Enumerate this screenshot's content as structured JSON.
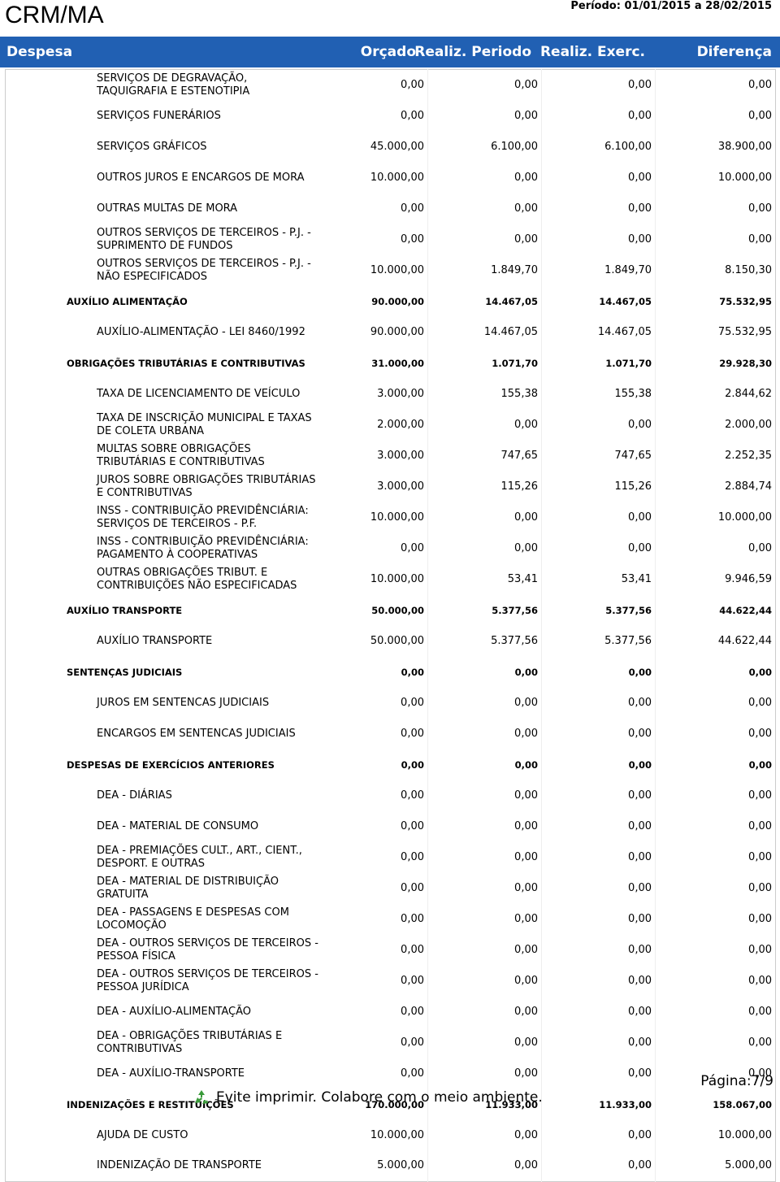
{
  "header": {
    "title": "CRM/MA",
    "period": "Período: 01/01/2015 a 28/02/2015"
  },
  "table": {
    "columns": [
      "Despesa",
      "Orçado",
      "Realiz. Periodo",
      "Realiz. Exerc.",
      "Diferença"
    ],
    "rows": [
      {
        "label": "SERVIÇOS DE DEGRAVAÇÃO, TAQUIGRAFIA E ESTENOTIPIA",
        "group": false,
        "values": [
          "0,00",
          "0,00",
          "0,00",
          "0,00"
        ]
      },
      {
        "label": "SERVIÇOS FUNERÁRIOS",
        "group": false,
        "values": [
          "0,00",
          "0,00",
          "0,00",
          "0,00"
        ]
      },
      {
        "label": "SERVIÇOS GRÁFICOS",
        "group": false,
        "values": [
          "45.000,00",
          "6.100,00",
          "6.100,00",
          "38.900,00"
        ]
      },
      {
        "label": "OUTROS JUROS E ENCARGOS DE MORA",
        "group": false,
        "values": [
          "10.000,00",
          "0,00",
          "0,00",
          "10.000,00"
        ]
      },
      {
        "label": "OUTRAS MULTAS DE MORA",
        "group": false,
        "values": [
          "0,00",
          "0,00",
          "0,00",
          "0,00"
        ]
      },
      {
        "label": "OUTROS SERVIÇOS DE TERCEIROS - P.J. - SUPRIMENTO DE FUNDOS",
        "group": false,
        "values": [
          "0,00",
          "0,00",
          "0,00",
          "0,00"
        ]
      },
      {
        "label": "OUTROS SERVIÇOS DE TERCEIROS - P.J. - NÃO ESPECIFICADOS",
        "group": false,
        "values": [
          "10.000,00",
          "1.849,70",
          "1.849,70",
          "8.150,30"
        ]
      },
      {
        "label": "AUXÍLIO ALIMENTAÇÃO",
        "group": true,
        "values": [
          "90.000,00",
          "14.467,05",
          "14.467,05",
          "75.532,95"
        ]
      },
      {
        "label": "AUXÍLIO-ALIMENTAÇÃO - LEI 8460/1992",
        "group": false,
        "values": [
          "90.000,00",
          "14.467,05",
          "14.467,05",
          "75.532,95"
        ]
      },
      {
        "label": "OBRIGAÇÕES TRIBUTÁRIAS E CONTRIBUTIVAS",
        "group": true,
        "values": [
          "31.000,00",
          "1.071,70",
          "1.071,70",
          "29.928,30"
        ]
      },
      {
        "label": "TAXA DE LICENCIAMENTO DE VEÍCULO",
        "group": false,
        "values": [
          "3.000,00",
          "155,38",
          "155,38",
          "2.844,62"
        ]
      },
      {
        "label": "TAXA DE INSCRIÇÃO MUNICIPAL E TAXAS DE COLETA URBANA",
        "group": false,
        "values": [
          "2.000,00",
          "0,00",
          "0,00",
          "2.000,00"
        ]
      },
      {
        "label": "MULTAS SOBRE OBRIGAÇÕES TRIBUTÁRIAS E CONTRIBUTIVAS",
        "group": false,
        "values": [
          "3.000,00",
          "747,65",
          "747,65",
          "2.252,35"
        ]
      },
      {
        "label": "JUROS SOBRE OBRIGAÇÕES TRIBUTÁRIAS E CONTRIBUTIVAS",
        "group": false,
        "values": [
          "3.000,00",
          "115,26",
          "115,26",
          "2.884,74"
        ]
      },
      {
        "label": "INSS - CONTRIBUIÇÃO PREVIDÊNCIÁRIA: SERVIÇOS DE TERCEIROS - P.F.",
        "group": false,
        "values": [
          "10.000,00",
          "0,00",
          "0,00",
          "10.000,00"
        ]
      },
      {
        "label": "INSS - CONTRIBUIÇÃO PREVIDÊNCIÁRIA: PAGAMENTO À COOPERATIVAS",
        "group": false,
        "values": [
          "0,00",
          "0,00",
          "0,00",
          "0,00"
        ]
      },
      {
        "label": "OUTRAS OBRIGAÇÕES TRIBUT. E CONTRIBUIÇÕES NÃO ESPECIFICADAS",
        "group": false,
        "values": [
          "10.000,00",
          "53,41",
          "53,41",
          "9.946,59"
        ]
      },
      {
        "label": "AUXÍLIO TRANSPORTE",
        "group": true,
        "values": [
          "50.000,00",
          "5.377,56",
          "5.377,56",
          "44.622,44"
        ]
      },
      {
        "label": "AUXÍLIO TRANSPORTE",
        "group": false,
        "values": [
          "50.000,00",
          "5.377,56",
          "5.377,56",
          "44.622,44"
        ]
      },
      {
        "label": "SENTENÇAS JUDICIAIS",
        "group": true,
        "values": [
          "0,00",
          "0,00",
          "0,00",
          "0,00"
        ]
      },
      {
        "label": "JUROS EM SENTENCAS JUDICIAIS",
        "group": false,
        "values": [
          "0,00",
          "0,00",
          "0,00",
          "0,00"
        ]
      },
      {
        "label": "ENCARGOS EM SENTENCAS JUDICIAIS",
        "group": false,
        "values": [
          "0,00",
          "0,00",
          "0,00",
          "0,00"
        ]
      },
      {
        "label": "DESPESAS DE EXERCÍCIOS ANTERIORES",
        "group": true,
        "values": [
          "0,00",
          "0,00",
          "0,00",
          "0,00"
        ]
      },
      {
        "label": "DEA - DIÁRIAS",
        "group": false,
        "values": [
          "0,00",
          "0,00",
          "0,00",
          "0,00"
        ]
      },
      {
        "label": "DEA - MATERIAL DE CONSUMO",
        "group": false,
        "values": [
          "0,00",
          "0,00",
          "0,00",
          "0,00"
        ]
      },
      {
        "label": "DEA - PREMIAÇÕES CULT., ART., CIENT., DESPORT. E OUTRAS",
        "group": false,
        "values": [
          "0,00",
          "0,00",
          "0,00",
          "0,00"
        ]
      },
      {
        "label": "DEA - MATERIAL DE DISTRIBUIÇÃO GRATUITA",
        "group": false,
        "values": [
          "0,00",
          "0,00",
          "0,00",
          "0,00"
        ]
      },
      {
        "label": "DEA - PASSAGENS E DESPESAS COM LOCOMOÇÃO",
        "group": false,
        "values": [
          "0,00",
          "0,00",
          "0,00",
          "0,00"
        ]
      },
      {
        "label": "DEA - OUTROS SERVIÇOS DE TERCEIROS - PESSOA FÍSICA",
        "group": false,
        "values": [
          "0,00",
          "0,00",
          "0,00",
          "0,00"
        ]
      },
      {
        "label": "DEA - OUTROS SERVIÇOS DE TERCEIROS - PESSOA JURÍDICA",
        "group": false,
        "values": [
          "0,00",
          "0,00",
          "0,00",
          "0,00"
        ]
      },
      {
        "label": "DEA - AUXÍLIO-ALIMENTAÇÃO",
        "group": false,
        "values": [
          "0,00",
          "0,00",
          "0,00",
          "0,00"
        ]
      },
      {
        "label": "DEA - OBRIGAÇÕES TRIBUTÁRIAS E CONTRIBUTIVAS",
        "group": false,
        "values": [
          "0,00",
          "0,00",
          "0,00",
          "0,00"
        ]
      },
      {
        "label": "DEA - AUXÍLIO-TRANSPORTE",
        "group": false,
        "values": [
          "0,00",
          "0,00",
          "0,00",
          "0,00"
        ]
      },
      {
        "label": "INDENIZAÇÕES E RESTITUIÇÕES",
        "group": true,
        "values": [
          "170.000,00",
          "11.933,00",
          "11.933,00",
          "158.067,00"
        ]
      },
      {
        "label": "AJUDA DE CUSTO",
        "group": false,
        "values": [
          "10.000,00",
          "0,00",
          "0,00",
          "10.000,00"
        ]
      },
      {
        "label": "INDENIZAÇÃO DE TRANSPORTE",
        "group": false,
        "values": [
          "5.000,00",
          "0,00",
          "0,00",
          "5.000,00"
        ]
      }
    ]
  },
  "footer": {
    "page": "Página:7/9",
    "note": "Evite imprimir. Colabore com o meio ambiente."
  }
}
